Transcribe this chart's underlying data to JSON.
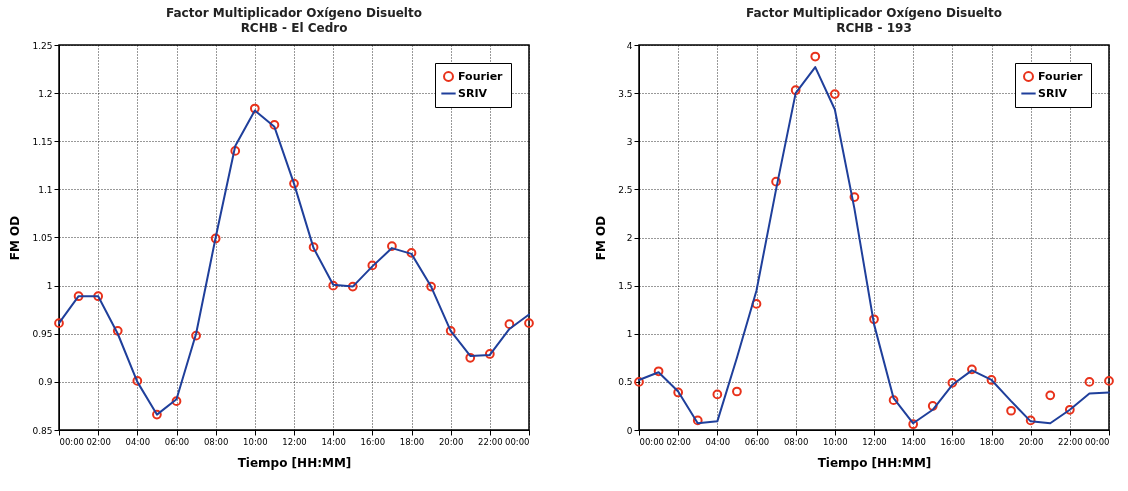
{
  "chart_data": [
    {
      "type": "line",
      "title": "Factor Multiplicador Oxígeno Disuelto",
      "subtitle": "RCHB - El Cedro",
      "xlabel": "Tiempo [HH:MM]",
      "ylabel": "FM OD",
      "x": [
        0,
        1,
        2,
        3,
        4,
        5,
        6,
        7,
        8,
        9,
        10,
        11,
        12,
        13,
        14,
        15,
        16,
        17,
        18,
        19,
        20,
        21,
        22,
        23,
        24
      ],
      "series": [
        {
          "name": "Fourier",
          "type": "scatter",
          "marker": "circle",
          "color": "#e8311a",
          "values": [
            0.961,
            0.989,
            0.989,
            0.953,
            0.901,
            0.866,
            0.88,
            0.948,
            1.049,
            1.14,
            1.184,
            1.167,
            1.106,
            1.04,
            1.0,
            0.999,
            1.021,
            1.041,
            1.034,
            0.999,
            0.953,
            0.925,
            0.929,
            0.96,
            0.961
          ]
        },
        {
          "name": "SRIV",
          "color": "#1f3f9b",
          "values": [
            0.961,
            0.989,
            0.989,
            0.95,
            0.9,
            0.866,
            0.882,
            0.95,
            1.05,
            1.145,
            1.182,
            1.165,
            1.106,
            1.039,
            1.001,
            0.999,
            1.02,
            1.039,
            1.033,
            0.999,
            0.953,
            0.927,
            0.928,
            0.955,
            0.97
          ]
        }
      ],
      "xlim": [
        0,
        24
      ],
      "xticks": [
        {
          "value": 0,
          "label": "00:00"
        },
        {
          "value": 2,
          "label": "02:00"
        },
        {
          "value": 4,
          "label": "04:00"
        },
        {
          "value": 6,
          "label": "06:00"
        },
        {
          "value": 8,
          "label": "08:00"
        },
        {
          "value": 10,
          "label": "10:00"
        },
        {
          "value": 12,
          "label": "12:00"
        },
        {
          "value": 14,
          "label": "14:00"
        },
        {
          "value": 16,
          "label": "16:00"
        },
        {
          "value": 18,
          "label": "18:00"
        },
        {
          "value": 20,
          "label": "20:00"
        },
        {
          "value": 22,
          "label": "22:00"
        },
        {
          "value": 24,
          "label": "00:00"
        }
      ],
      "ylim": [
        0.85,
        1.25
      ],
      "yticks": [
        0.85,
        0.9,
        0.95,
        1,
        1.05,
        1.1,
        1.15,
        1.2,
        1.25
      ],
      "grid": true,
      "legend": "top right",
      "line_style": "solid"
    },
    {
      "type": "line",
      "title": "Factor Multiplicador Oxígeno Disuelto",
      "subtitle": "RCHB - 193",
      "xlabel": "Tiempo [HH:MM]",
      "ylabel": "FM OD",
      "x": [
        0,
        1,
        2,
        3,
        4,
        5,
        6,
        7,
        8,
        9,
        10,
        11,
        12,
        13,
        14,
        15,
        16,
        17,
        18,
        19,
        20,
        21,
        22,
        23,
        24
      ],
      "series": [
        {
          "name": "Fourier",
          "type": "scatter",
          "marker": "circle",
          "color": "#e8311a",
          "values": [
            0.5,
            0.61,
            0.39,
            0.1,
            0.37,
            0.4,
            1.31,
            2.58,
            3.53,
            3.88,
            3.49,
            2.42,
            1.15,
            0.31,
            0.06,
            0.25,
            0.49,
            0.63,
            0.52,
            0.2,
            0.1,
            0.36,
            0.21,
            0.5,
            0.51
          ]
        },
        {
          "name": "SRIV",
          "color": "#1f3f9b",
          "values": [
            0.52,
            0.6,
            0.4,
            0.07,
            0.09,
            0.75,
            1.45,
            2.5,
            3.5,
            3.77,
            3.33,
            2.3,
            1.1,
            0.33,
            0.07,
            0.21,
            0.47,
            0.62,
            0.52,
            0.3,
            0.09,
            0.07,
            0.21,
            0.38,
            0.39
          ]
        }
      ],
      "xlim": [
        0,
        24
      ],
      "xticks": [
        {
          "value": 0,
          "label": "00:00"
        },
        {
          "value": 2,
          "label": "02:00"
        },
        {
          "value": 4,
          "label": "04:00"
        },
        {
          "value": 6,
          "label": "06:00"
        },
        {
          "value": 8,
          "label": "08:00"
        },
        {
          "value": 10,
          "label": "10:00"
        },
        {
          "value": 12,
          "label": "12:00"
        },
        {
          "value": 14,
          "label": "14:00"
        },
        {
          "value": 16,
          "label": "16:00"
        },
        {
          "value": 18,
          "label": "18:00"
        },
        {
          "value": 20,
          "label": "20:00"
        },
        {
          "value": 22,
          "label": "22:00"
        },
        {
          "value": 24,
          "label": "00:00"
        }
      ],
      "ylim": [
        0,
        4
      ],
      "yticks": [
        0,
        0.5,
        1,
        1.5,
        2,
        2.5,
        3,
        3.5,
        4
      ],
      "grid": true,
      "legend": "top right",
      "line_style": "solid"
    }
  ]
}
